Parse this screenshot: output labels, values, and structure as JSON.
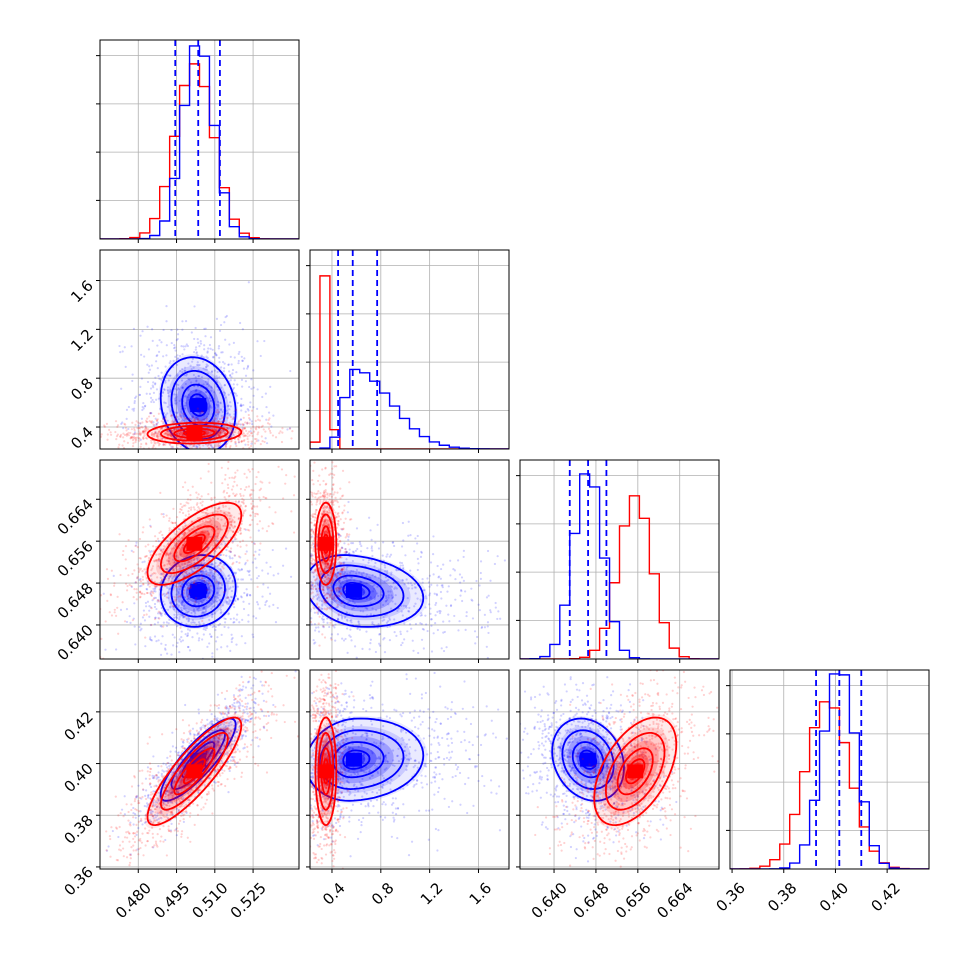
{
  "chart_data": {
    "type": "corner",
    "n_params": 4,
    "colors": {
      "blue": "#0000ff",
      "red": "#ff0000"
    },
    "grid": true,
    "params": [
      {
        "range": [
          0.465,
          0.543
        ],
        "ticks": [
          0.48,
          0.495,
          0.51,
          0.525
        ],
        "tick_labels": [
          "0.480",
          "0.495",
          "0.510",
          "0.525"
        ]
      },
      {
        "range": [
          0.22,
          1.85
        ],
        "ticks": [
          0.4,
          0.8,
          1.2,
          1.6
        ],
        "tick_labels": [
          "0.4",
          "0.8",
          "1.2",
          "1.6"
        ]
      },
      {
        "range": [
          0.6335,
          0.6715
        ],
        "ticks": [
          0.64,
          0.648,
          0.656,
          0.664
        ],
        "tick_labels": [
          "0.640",
          "0.648",
          "0.656",
          "0.664"
        ]
      },
      {
        "range": [
          0.3592,
          0.4362
        ],
        "ticks": [
          0.36,
          0.38,
          0.4,
          0.42
        ],
        "tick_labels": [
          "0.36",
          "0.38",
          "0.40",
          "0.42"
        ]
      }
    ],
    "blue": {
      "means": [
        0.5035,
        0.58,
        0.6465,
        0.4015
      ],
      "sds": [
        0.006,
        0.16,
        0.0028,
        0.0065
      ],
      "quantile_lines": [
        [
          0.4945,
          0.5035,
          0.512
        ],
        [
          0.45,
          0.57,
          0.77
        ],
        [
          0.643,
          0.6465,
          0.65
        ],
        [
          0.3925,
          0.4015,
          0.41
        ]
      ],
      "hist_peak_frac": [
        0.97,
        0.4,
        0.93,
        0.98
      ],
      "correlations": {
        "0-3": 0.85,
        "2-3": -0.2,
        "0-2": 0.1,
        "1-2": -0.2,
        "1-3": 0.1,
        "0-1": -0.15
      }
    },
    "red": {
      "means": [
        0.502,
        0.35,
        0.6555,
        0.397
      ],
      "sds": [
        0.0075,
        0.035,
        0.0032,
        0.0085
      ],
      "hist_peak_frac": [
        0.88,
        0.87,
        0.82,
        0.84
      ],
      "correlations": {
        "0-2": 0.7,
        "0-3": 0.85,
        "2-3": 0.5,
        "1-2": 0.0,
        "1-3": 0.0,
        "0-1": 0.1
      }
    }
  }
}
